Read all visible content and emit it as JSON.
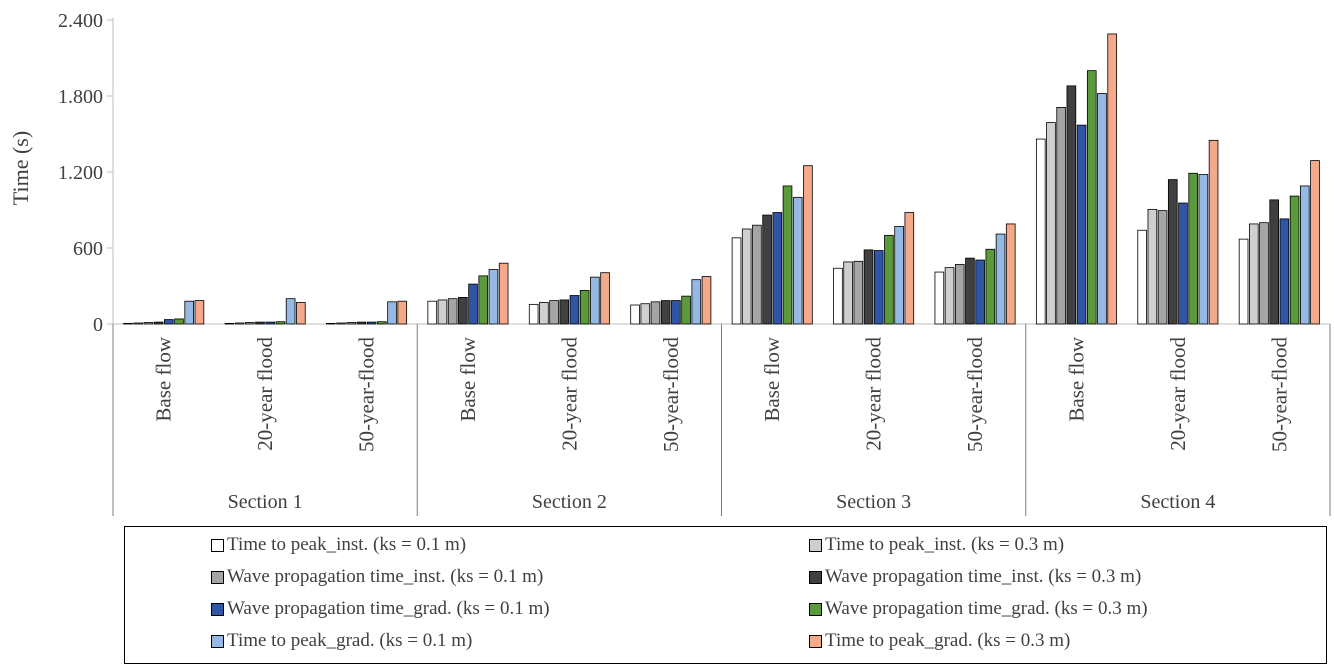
{
  "chart_data": {
    "type": "bar",
    "ylabel": "Time (s)",
    "ylim": [
      0,
      2400
    ],
    "yticks": [
      0,
      600,
      1200,
      1800,
      2400
    ],
    "ytick_labels": [
      "0",
      "600",
      "1.200",
      "1.800",
      "2.400"
    ],
    "grid": false,
    "legend_position": "bottom",
    "groups": [
      {
        "label": "Section 1",
        "categories": [
          "Base flow",
          "20-year flood",
          "50-year-flood"
        ]
      },
      {
        "label": "Section 2",
        "categories": [
          "Base flow",
          "20-year flood",
          "50-year-flood"
        ]
      },
      {
        "label": "Section 3",
        "categories": [
          "Base flow",
          "20-year flood",
          "50-year-flood"
        ]
      },
      {
        "label": "Section 4",
        "categories": [
          "Base flow",
          "20-year flood",
          "50-year-flood"
        ]
      }
    ],
    "series": [
      {
        "name": "Time to peak_inst. (ks = 0.1 m)",
        "color": "#ffffff",
        "values": [
          5,
          5,
          5,
          180,
          155,
          150,
          680,
          440,
          410,
          1460,
          740,
          670
        ]
      },
      {
        "name": "Time to peak_inst. (ks = 0.3 m)",
        "color": "#d0cece",
        "values": [
          8,
          8,
          8,
          190,
          170,
          160,
          750,
          490,
          445,
          1590,
          905,
          790
        ]
      },
      {
        "name": "Wave propagation time_inst. (ks = 0.1 m)",
        "color": "#a5a5a5",
        "values": [
          12,
          12,
          12,
          200,
          185,
          175,
          780,
          495,
          470,
          1710,
          895,
          800
        ]
      },
      {
        "name": "Wave propagation time_inst. (ks = 0.3 m)",
        "color": "#404040",
        "values": [
          15,
          15,
          15,
          210,
          190,
          185,
          860,
          585,
          520,
          1880,
          1140,
          980
        ]
      },
      {
        "name": "Wave propagation time_grad. (ks = 0.1 m)",
        "color": "#2f55a4",
        "values": [
          35,
          15,
          15,
          315,
          225,
          185,
          880,
          580,
          505,
          1570,
          955,
          830
        ]
      },
      {
        "name": "Wave propagation time_grad. (ks = 0.3 m)",
        "color": "#5b9a3a",
        "values": [
          40,
          18,
          18,
          380,
          265,
          220,
          1090,
          700,
          590,
          2000,
          1190,
          1010
        ]
      },
      {
        "name": "Time to peak_grad. (ks = 0.1 m)",
        "color": "#95b9e2",
        "values": [
          180,
          200,
          175,
          430,
          370,
          350,
          1000,
          770,
          710,
          1820,
          1180,
          1090
        ]
      },
      {
        "name": "Time to peak_grad. (ks = 0.3 m)",
        "color": "#f3a98a",
        "values": [
          185,
          170,
          180,
          480,
          405,
          375,
          1250,
          880,
          790,
          2290,
          1450,
          1290
        ]
      }
    ]
  }
}
